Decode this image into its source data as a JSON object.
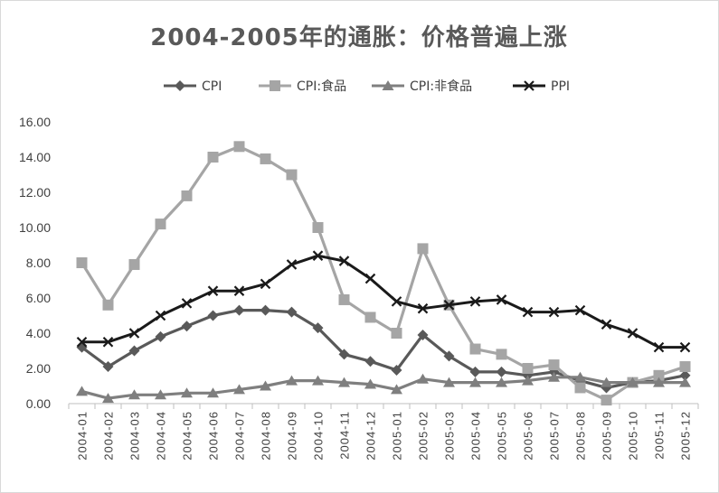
{
  "chart_data": {
    "type": "line",
    "title": "2004-2005年的通胀：价格普遍上涨",
    "xlabel": "",
    "ylabel": "",
    "ylim": [
      0,
      16
    ],
    "yticks": [
      "0.00",
      "2.00",
      "4.00",
      "6.00",
      "8.00",
      "10.00",
      "12.00",
      "14.00",
      "16.00"
    ],
    "grid": false,
    "legend_position": "top",
    "categories": [
      "2004-01",
      "2004-02",
      "2004-03",
      "2004-04",
      "2004-05",
      "2004-06",
      "2004-07",
      "2004-08",
      "2004-09",
      "2004-10",
      "2004-11",
      "2004-12",
      "2005-01",
      "2005-02",
      "2005-03",
      "2005-04",
      "2005-05",
      "2005-06",
      "2005-07",
      "2005-08",
      "2005-09",
      "2005-10",
      "2005-11",
      "2005-12"
    ],
    "series": [
      {
        "name": "CPI",
        "color": "#595959",
        "marker": "diamond",
        "values": [
          3.2,
          2.1,
          3.0,
          3.8,
          4.4,
          5.0,
          5.3,
          5.3,
          5.2,
          4.3,
          2.8,
          2.4,
          1.9,
          3.9,
          2.7,
          1.8,
          1.8,
          1.6,
          1.8,
          1.3,
          0.9,
          1.2,
          1.3,
          1.6
        ]
      },
      {
        "name": "CPI:食品",
        "color": "#a5a5a5",
        "marker": "square",
        "values": [
          8.0,
          5.6,
          7.9,
          10.2,
          11.8,
          14.0,
          14.6,
          13.9,
          13.0,
          10.0,
          5.9,
          4.9,
          4.0,
          8.8,
          5.6,
          3.1,
          2.8,
          2.0,
          2.2,
          0.9,
          0.2,
          1.2,
          1.6,
          2.1
        ]
      },
      {
        "name": "CPI:非食品",
        "color": "#7f7f7f",
        "marker": "triangle",
        "values": [
          0.7,
          0.3,
          0.5,
          0.5,
          0.6,
          0.6,
          0.8,
          1.0,
          1.3,
          1.3,
          1.2,
          1.1,
          0.8,
          1.4,
          1.2,
          1.2,
          1.2,
          1.3,
          1.5,
          1.5,
          1.2,
          1.2,
          1.2,
          1.2
        ]
      },
      {
        "name": "PPI",
        "color": "#1a1a1a",
        "marker": "x",
        "values": [
          3.5,
          3.5,
          4.0,
          5.0,
          5.7,
          6.4,
          6.4,
          6.8,
          7.9,
          8.4,
          8.1,
          7.1,
          5.8,
          5.4,
          5.6,
          5.8,
          5.9,
          5.2,
          5.2,
          5.3,
          4.5,
          4.0,
          3.2,
          3.2
        ]
      }
    ]
  }
}
